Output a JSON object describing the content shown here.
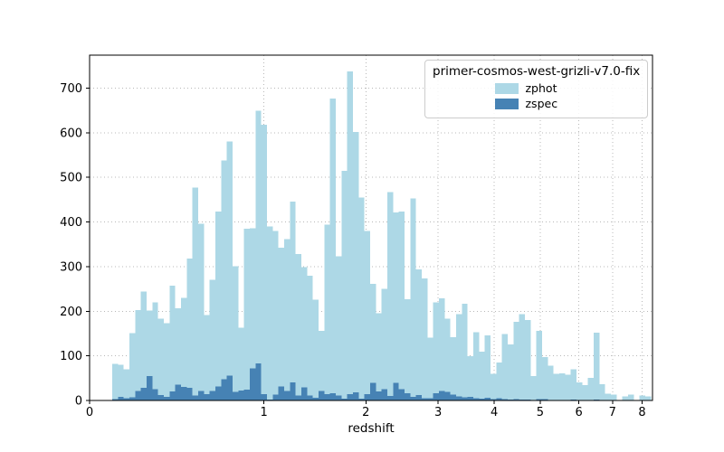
{
  "figure": {
    "background": "#ffffff"
  },
  "chart_data": {
    "type": "bar",
    "subtype": "stepfilled-histogram",
    "title": "",
    "xlabel": "redshift",
    "ylabel": "",
    "x_scale": "log10(1+z)",
    "xlim_z": [
      0,
      8.38
    ],
    "ylim": [
      0,
      774
    ],
    "xticks": [
      0,
      1,
      2,
      3,
      4,
      5,
      6,
      7,
      8
    ],
    "yticks": [
      0,
      100,
      200,
      300,
      400,
      500,
      600,
      700
    ],
    "grid": "dotted",
    "grid_color": "#b8b8b8",
    "spine_color": "#000000",
    "legend": {
      "title": "primer-cosmos-west-grizli-v7.0-fix",
      "position": "upper right"
    },
    "bins": {
      "log10_1plusz_start": 0.039,
      "log10_1plusz_width": 0.0099,
      "count": 94
    },
    "series": [
      {
        "name": "zphot",
        "color": "#ADD8E6",
        "values": [
          82,
          80,
          70,
          151,
          203,
          244,
          202,
          220,
          183,
          173,
          257,
          207,
          230,
          318,
          477,
          396,
          191,
          271,
          423,
          538,
          581,
          301,
          163,
          385,
          386,
          649,
          618,
          390,
          380,
          342,
          362,
          446,
          328,
          299,
          280,
          226,
          156,
          394,
          677,
          323,
          515,
          738,
          602,
          455,
          380,
          261,
          196,
          250,
          467,
          421,
          423,
          227,
          453,
          294,
          274,
          141,
          220,
          229,
          183,
          142,
          193,
          217,
          99,
          153,
          109,
          146,
          60,
          85,
          149,
          126,
          176,
          193,
          180,
          55,
          156,
          97,
          78,
          60,
          61,
          58,
          70,
          41,
          34,
          51,
          152,
          36,
          15,
          13,
          0,
          9,
          13,
          0,
          11,
          9
        ]
      },
      {
        "name": "zspec",
        "color": "#4682B4",
        "values": [
          3,
          8,
          5,
          7,
          21,
          28,
          55,
          25,
          12,
          8,
          20,
          35,
          30,
          28,
          11,
          21,
          14,
          21,
          31,
          48,
          56,
          19,
          22,
          24,
          72,
          83,
          14,
          2,
          13,
          31,
          21,
          41,
          11,
          29,
          11,
          6,
          21,
          14,
          16,
          11,
          4,
          14,
          18,
          4,
          14,
          40,
          20,
          25,
          10,
          40,
          25,
          16,
          8,
          12,
          5,
          5,
          16,
          21,
          19,
          13,
          9,
          7,
          8,
          5,
          4,
          6,
          3,
          5,
          3,
          2,
          3,
          2,
          2,
          1,
          3,
          3,
          1,
          1,
          0,
          1,
          2,
          1,
          0,
          0,
          2,
          0,
          0,
          0,
          0,
          0,
          0,
          0,
          0,
          0
        ]
      }
    ]
  }
}
